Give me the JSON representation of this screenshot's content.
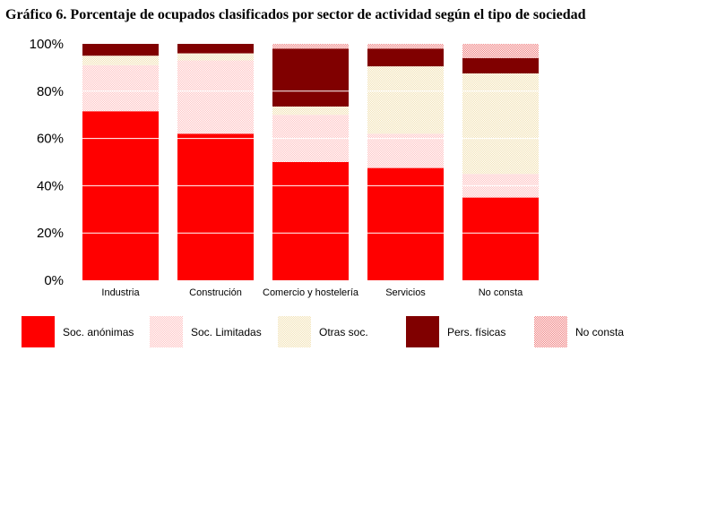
{
  "chart_data": {
    "type": "bar",
    "stacked": true,
    "title": "Gráfico 6. Porcentaje de ocupados clasificados por sector de actividad según el tipo de sociedad",
    "categories": [
      "Industria",
      "Construción",
      "Comercio y hostelería",
      "Servicios",
      "No consta"
    ],
    "ylim": [
      0,
      100
    ],
    "yticks": [
      "0%",
      "20%",
      "40%",
      "60%",
      "80%",
      "100%"
    ],
    "grid": true,
    "legend_position": "bottom",
    "series": [
      {
        "name": "Soc. anónimas",
        "color": "#ff0000",
        "pattern": "solid",
        "values": [
          71.5,
          62.0,
          50.0,
          47.5,
          35.0
        ]
      },
      {
        "name": "Soc. Limitadas",
        "color": "#ffc2c2",
        "pattern": "dotted",
        "values": [
          19.5,
          31.0,
          20.0,
          14.5,
          10.0
        ]
      },
      {
        "name": "Otras soc.",
        "color": "#f2e2b4",
        "pattern": "dotted",
        "values": [
          4.0,
          3.0,
          3.5,
          28.5,
          42.5
        ]
      },
      {
        "name": "Pers. físicas",
        "color": "#800000",
        "pattern": "solid",
        "values": [
          5.0,
          4.0,
          24.5,
          7.5,
          6.5
        ]
      },
      {
        "name": "No consta",
        "color": "#f08080",
        "pattern": "dotted",
        "values": [
          0.0,
          0.0,
          2.0,
          2.0,
          6.0
        ]
      }
    ]
  }
}
